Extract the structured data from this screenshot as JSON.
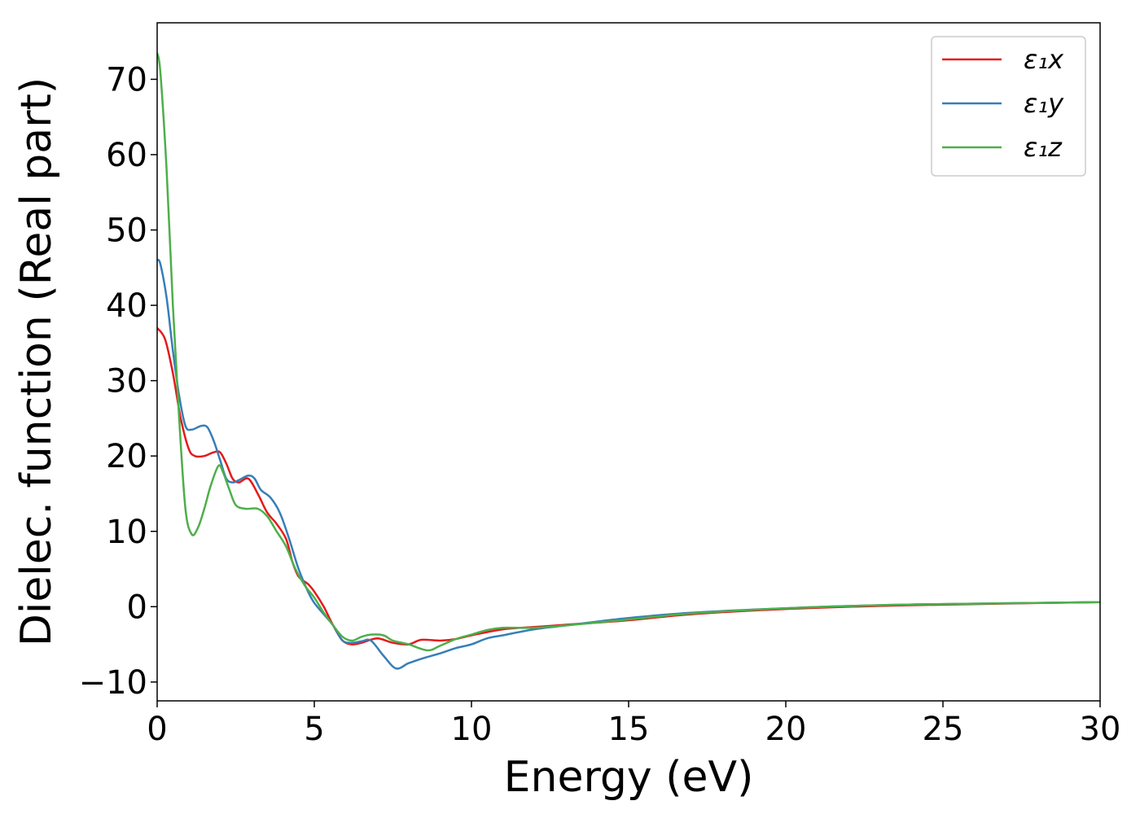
{
  "chart_data": {
    "type": "line",
    "title": "",
    "xlabel": "Energy (eV)",
    "ylabel": "Dielec. function (Real part)",
    "xlim": [
      0,
      30
    ],
    "ylim": [
      -12.5,
      77.5
    ],
    "xticks": [
      0,
      5,
      10,
      15,
      20,
      25,
      30
    ],
    "xtick_labels": [
      "0",
      "5",
      "10",
      "15",
      "20",
      "25",
      "30"
    ],
    "yticks": [
      -10,
      0,
      10,
      20,
      30,
      40,
      50,
      60,
      70
    ],
    "ytick_labels": [
      "−10",
      "0",
      "10",
      "20",
      "30",
      "40",
      "50",
      "60",
      "70"
    ],
    "grid": false,
    "legend_position": "top-right",
    "series": [
      {
        "name": "ε₁x",
        "color": "#e41a1c",
        "points": [
          [
            0,
            37
          ],
          [
            0.25,
            35.5
          ],
          [
            0.5,
            31
          ],
          [
            0.75,
            25
          ],
          [
            1.0,
            21
          ],
          [
            1.2,
            20
          ],
          [
            1.5,
            20
          ],
          [
            1.8,
            20.5
          ],
          [
            2.0,
            20.5
          ],
          [
            2.2,
            19
          ],
          [
            2.4,
            17
          ],
          [
            2.6,
            16.5
          ],
          [
            2.9,
            17
          ],
          [
            3.2,
            15
          ],
          [
            3.5,
            12.5
          ],
          [
            3.8,
            11
          ],
          [
            4.1,
            9
          ],
          [
            4.3,
            6
          ],
          [
            4.5,
            4
          ],
          [
            4.8,
            3
          ],
          [
            5.0,
            2
          ],
          [
            5.3,
            0
          ],
          [
            5.6,
            -2.5
          ],
          [
            5.9,
            -4.5
          ],
          [
            6.2,
            -5
          ],
          [
            6.5,
            -4.8
          ],
          [
            7.0,
            -4.2
          ],
          [
            7.5,
            -4.8
          ],
          [
            8.0,
            -5.0
          ],
          [
            8.4,
            -4.4
          ],
          [
            9.0,
            -4.5
          ],
          [
            9.5,
            -4.3
          ],
          [
            10.0,
            -3.8
          ],
          [
            11.0,
            -3.0
          ],
          [
            12.0,
            -2.7
          ],
          [
            13.0,
            -2.4
          ],
          [
            15.0,
            -1.8
          ],
          [
            17.0,
            -1.0
          ],
          [
            20.0,
            -0.3
          ],
          [
            23.0,
            0.1
          ],
          [
            26.0,
            0.35
          ],
          [
            30.0,
            0.6
          ]
        ]
      },
      {
        "name": "ε₁y",
        "color": "#377eb8",
        "points": [
          [
            0,
            46
          ],
          [
            0.1,
            45.5
          ],
          [
            0.3,
            41
          ],
          [
            0.5,
            34
          ],
          [
            0.7,
            28
          ],
          [
            0.9,
            24
          ],
          [
            1.1,
            23.5
          ],
          [
            1.4,
            24
          ],
          [
            1.6,
            23.8
          ],
          [
            1.8,
            22
          ],
          [
            2.0,
            19.5
          ],
          [
            2.2,
            17
          ],
          [
            2.4,
            16.5
          ],
          [
            2.6,
            16.8
          ],
          [
            2.9,
            17.4
          ],
          [
            3.1,
            17
          ],
          [
            3.3,
            15.5
          ],
          [
            3.6,
            14.5
          ],
          [
            3.9,
            12.5
          ],
          [
            4.2,
            9
          ],
          [
            4.5,
            5
          ],
          [
            4.8,
            2
          ],
          [
            5.0,
            0.5
          ],
          [
            5.3,
            -1
          ],
          [
            5.6,
            -2.5
          ],
          [
            5.9,
            -4.5
          ],
          [
            6.2,
            -4.8
          ],
          [
            6.5,
            -4.6
          ],
          [
            6.8,
            -4.5
          ],
          [
            7.2,
            -6.5
          ],
          [
            7.6,
            -8.2
          ],
          [
            8.0,
            -7.5
          ],
          [
            8.5,
            -6.8
          ],
          [
            9.0,
            -6.2
          ],
          [
            9.5,
            -5.5
          ],
          [
            10.0,
            -5
          ],
          [
            10.5,
            -4.2
          ],
          [
            11.0,
            -3.8
          ],
          [
            12.0,
            -3.0
          ],
          [
            13.0,
            -2.5
          ],
          [
            15.0,
            -1.5
          ],
          [
            17.0,
            -0.8
          ],
          [
            20.0,
            -0.2
          ],
          [
            23.0,
            0.2
          ],
          [
            26.0,
            0.4
          ],
          [
            30.0,
            0.6
          ]
        ]
      },
      {
        "name": "ε₁z",
        "color": "#4daf4a",
        "points": [
          [
            0,
            73.5
          ],
          [
            0.1,
            71
          ],
          [
            0.3,
            58
          ],
          [
            0.5,
            40
          ],
          [
            0.7,
            25
          ],
          [
            0.9,
            13
          ],
          [
            1.1,
            9.6
          ],
          [
            1.3,
            10.5
          ],
          [
            1.5,
            13
          ],
          [
            1.7,
            16
          ],
          [
            1.95,
            18.7
          ],
          [
            2.1,
            17.8
          ],
          [
            2.3,
            15.5
          ],
          [
            2.5,
            13.5
          ],
          [
            2.8,
            13
          ],
          [
            3.2,
            13
          ],
          [
            3.5,
            12
          ],
          [
            3.8,
            10
          ],
          [
            4.1,
            8
          ],
          [
            4.4,
            5
          ],
          [
            4.7,
            2.8
          ],
          [
            5.0,
            1.2
          ],
          [
            5.3,
            -0.8
          ],
          [
            5.6,
            -2.5
          ],
          [
            5.9,
            -4.0
          ],
          [
            6.2,
            -4.5
          ],
          [
            6.5,
            -4
          ],
          [
            6.8,
            -3.7
          ],
          [
            7.2,
            -3.8
          ],
          [
            7.5,
            -4.5
          ],
          [
            8.0,
            -5
          ],
          [
            8.6,
            -5.8
          ],
          [
            9.0,
            -5.2
          ],
          [
            9.5,
            -4.3
          ],
          [
            10.0,
            -3.7
          ],
          [
            10.5,
            -3.1
          ],
          [
            11.0,
            -2.8
          ],
          [
            12.0,
            -2.8
          ],
          [
            13.0,
            -2.5
          ],
          [
            15.0,
            -1.7
          ],
          [
            17.0,
            -0.9
          ],
          [
            20.0,
            -0.2
          ],
          [
            23.0,
            0.2
          ],
          [
            26.0,
            0.4
          ],
          [
            30.0,
            0.6
          ]
        ]
      }
    ]
  }
}
